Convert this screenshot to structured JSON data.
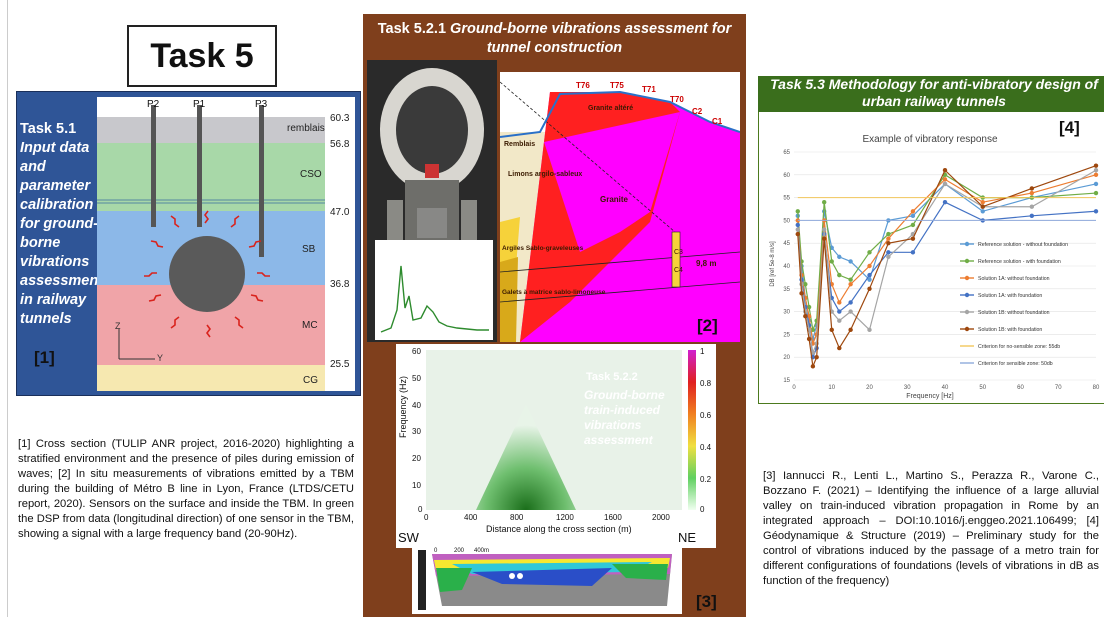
{
  "title": "Task 5",
  "panel1": {
    "heading": "Task 5.1",
    "body": "Input data and parameter calibration for ground-borne vibrations assessment in railway tunnels",
    "ref": "[1]",
    "piles": [
      "P2",
      "P1",
      "P3"
    ],
    "layers": [
      "remblais",
      "CSO",
      "SB",
      "MC",
      "CG"
    ],
    "depths": [
      "60.3",
      "56.8",
      "47.0",
      "36.8",
      "25.5"
    ],
    "axes": {
      "z": "Z",
      "y": "Y"
    }
  },
  "panel2": {
    "title_prefix": "Task 5.2.1",
    "title_italic": "Ground-borne vibrations assessment for tunnel construction",
    "ref_top": "[2]",
    "ref_bottom": "[3]",
    "geo_labels": [
      "T76",
      "T75",
      "T71",
      "T70",
      "C2",
      "C1",
      "Granite altéré",
      "Remblais",
      "Limons argilo-sableux",
      "Granite",
      "Argiles Sablo-graveleuses",
      "Galets à matrice sablo-limoneuse",
      "C3",
      "C4",
      "9,8 m"
    ],
    "sub_title": "Task 5.2.2",
    "sub_body": "Ground-borne train-induced vibrations assessment",
    "spec_ylabel": "Frequency (Hz)",
    "spec_xlabel": "Distance along the cross section (m)",
    "spec_yticks": [
      "60",
      "50",
      "40",
      "30",
      "20",
      "10",
      "0"
    ],
    "spec_xticks": [
      "0",
      "400",
      "800",
      "1200",
      "1600",
      "2000"
    ],
    "cbar_ticks": [
      "1",
      "0.8",
      "0.6",
      "0.4",
      "0.2",
      "0"
    ],
    "sw": "SW",
    "ne": "NE",
    "section_scale": [
      "0",
      "200",
      "400m"
    ]
  },
  "panel3": {
    "title": "Task 5.3 Methodology for anti-vibratory design of urban railway tunnels",
    "ref": "[4]",
    "chart_title": "Example of vibratory response",
    "xlabel": "Frequency [Hz]",
    "ylabel": "DB [ref 5e-8 m/s]"
  },
  "chart_data": {
    "type": "line",
    "title": "Example of vibratory response",
    "xlabel": "Frequency [Hz]",
    "ylabel": "DB [ref 5e-8 m/s]",
    "xlim": [
      0,
      80
    ],
    "ylim": [
      15,
      65
    ],
    "xticks": [
      0,
      10,
      20,
      30,
      40,
      50,
      60,
      70,
      80
    ],
    "yticks": [
      15,
      20,
      25,
      30,
      35,
      40,
      45,
      50,
      55,
      60,
      65
    ],
    "x": [
      1,
      2,
      3,
      4,
      5,
      6,
      8,
      10,
      12,
      15,
      20,
      25,
      31.5,
      40,
      50,
      63,
      80
    ],
    "series": [
      {
        "name": "Reference solution - without foundation",
        "color": "#5b9bd5",
        "values": [
          51,
          40,
          33,
          28,
          24,
          27,
          52,
          44,
          42,
          41,
          37,
          50,
          51,
          58,
          52,
          55,
          58
        ]
      },
      {
        "name": "Reference solution - with foundation",
        "color": "#70ad47",
        "values": [
          52,
          41,
          36,
          31,
          26,
          28,
          54,
          41,
          38,
          37,
          43,
          47,
          49,
          60,
          55,
          55,
          56
        ]
      },
      {
        "name": "Solution 1A: without foundation",
        "color": "#ed7d31",
        "values": [
          50,
          38,
          33,
          29,
          23,
          25,
          50,
          36,
          32,
          36,
          40,
          46,
          52,
          59,
          54,
          56,
          60
        ]
      },
      {
        "name": "Solution 1A: with foundation",
        "color": "#4472c4",
        "values": [
          49,
          37,
          31,
          27,
          20,
          22,
          47,
          33,
          30,
          32,
          38,
          43,
          43,
          54,
          50,
          51,
          52
        ]
      },
      {
        "name": "Solution 1B: without foundation",
        "color": "#a5a5a5",
        "values": [
          48,
          36,
          30,
          26,
          21,
          23,
          48,
          30,
          28,
          30,
          26,
          42,
          47,
          58,
          53,
          53,
          61
        ]
      },
      {
        "name": "Solution 1B: with foundation",
        "color": "#9e480e",
        "values": [
          47,
          34,
          29,
          24,
          18,
          20,
          46,
          26,
          22,
          26,
          35,
          45,
          46,
          61,
          53,
          57,
          62
        ]
      },
      {
        "name": "Criterion for no-sensible zone: 55db",
        "color": "#f2c75c",
        "values": [
          55,
          55,
          55,
          55,
          55,
          55,
          55,
          55,
          55,
          55,
          55,
          55,
          55,
          55,
          55,
          55,
          55
        ]
      },
      {
        "name": "Criterion for sensible zone: 50db",
        "color": "#8faadc",
        "values": [
          50,
          50,
          50,
          50,
          50,
          50,
          50,
          50,
          50,
          50,
          50,
          50,
          50,
          50,
          50,
          50,
          50
        ]
      }
    ]
  },
  "captions": {
    "cap1": "[1] Cross section (TULIP ANR project, 2016-2020) highlighting a stratified environment and the presence of piles during emission of waves; [2] In situ measurements of vibrations emitted by a TBM during the building of Métro B line in Lyon, France (LTDS/CETU report, 2020). Sensors on the surface and inside the TBM. In green the DSP from data (longitudinal direction) of one sensor in the TBM, showing a signal with a large frequency band (20-90Hz).",
    "cap3": "[3] Iannucci R., Lenti L., Martino S., Perazza R., Varone C., Bozzano F. (2021) – Identifying the influence of a large alluvial valley on train-induced vibration propagation in Rome by an integrated approach – DOI:10.1016/j.enggeo.2021.106499; [4] Géodynamique & Structure (2019) – Preliminary study for the control of vibrations induced by the passage of a metro train for different configurations of foundations (levels of vibrations in dB as function of the frequency)"
  },
  "colors": {
    "panel1_bg": "#2f5597",
    "panel2_bg": "#7f3f1c",
    "panel3_title_bg": "#3a6e1c"
  }
}
